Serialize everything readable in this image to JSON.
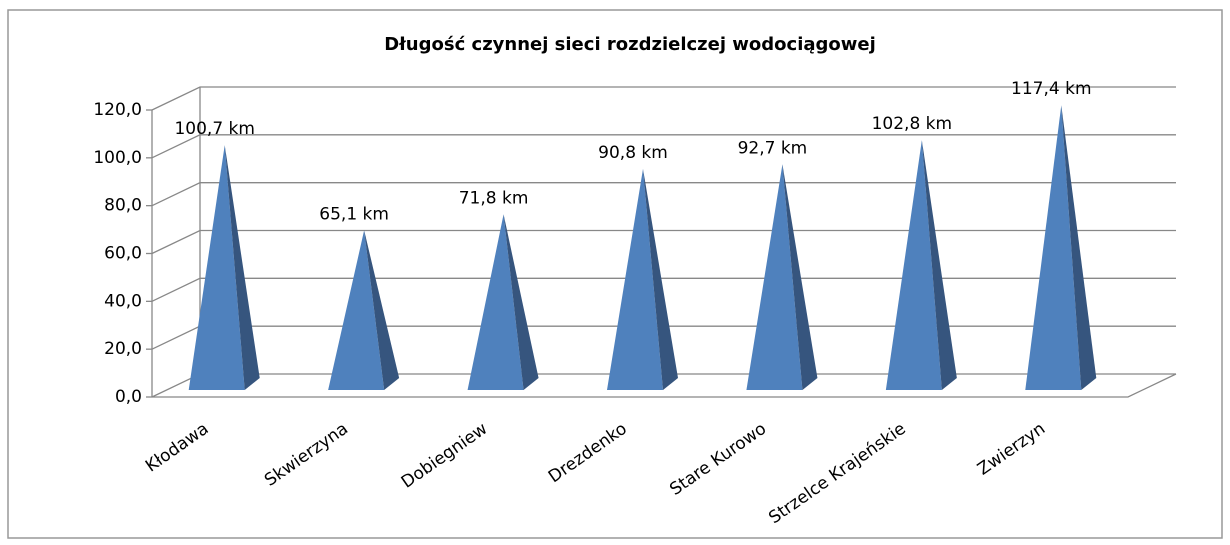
{
  "chart_data": {
    "type": "bar3d_pyramid",
    "title": "Długość czynnej sieci rozdzielczej   wodociągowej",
    "categories": [
      "Kłodawa",
      "Skwierzyna",
      "Dobiegniew",
      "Drezdenko",
      "Stare Kurowo",
      "Strzelce Krajeńskie",
      "Zwierzyn"
    ],
    "values": [
      100.7,
      65.1,
      71.8,
      90.8,
      92.7,
      102.8,
      117.4
    ],
    "value_labels": [
      "100,7 km",
      "65,1 km",
      "71,8 km",
      "90,8 km",
      "92,7 km",
      "102,8 km",
      "117,4 km"
    ],
    "color": "#4f81bd",
    "ylim": [
      0,
      120
    ],
    "yticks": [
      {
        "value": 0,
        "label": "0,0"
      },
      {
        "value": 20,
        "label": "20,0"
      },
      {
        "value": 40,
        "label": "40,0"
      },
      {
        "value": 60,
        "label": "60,0"
      },
      {
        "value": 80,
        "label": "80,0"
      },
      {
        "value": 100,
        "label": "100,0"
      },
      {
        "value": 120,
        "label": "120,0"
      }
    ],
    "grid": true
  }
}
